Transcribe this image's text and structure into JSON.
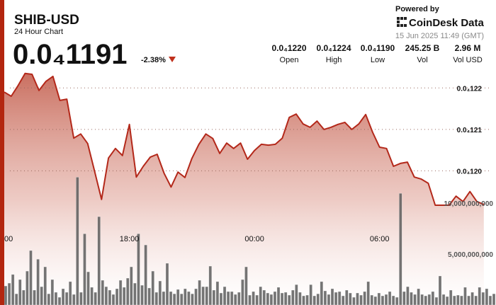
{
  "header": {
    "symbol": "SHIB-USD",
    "subtitle": "24 Hour Chart",
    "price": "0.0₄1191",
    "change": "-2.38%",
    "powered_by": "Powered by",
    "brand": "CoinDesk Data",
    "timestamp": "15 Jun 2025 11:49 (GMT)"
  },
  "stats": [
    {
      "value": "0.0₄1220",
      "label": "Open"
    },
    {
      "value": "0.0₄1224",
      "label": "High"
    },
    {
      "value": "0.0₄1190",
      "label": "Low"
    },
    {
      "value": "245.25 B",
      "label": "Vol"
    },
    {
      "value": "2.96 M",
      "label": "Vol USD"
    }
  ],
  "chart_data": {
    "type": "line",
    "color": "#b3281a",
    "grid": true,
    "x": [
      0,
      20,
      40,
      60,
      80,
      100,
      120,
      140,
      160,
      180,
      200,
      220,
      240,
      260,
      280,
      300,
      320,
      340,
      360,
      380,
      400,
      420,
      440,
      460,
      480,
      500,
      520,
      540,
      560,
      580,
      600,
      620,
      640,
      660,
      680,
      700,
      720,
      740,
      760,
      780,
      800,
      820,
      840,
      860,
      880,
      900,
      920,
      940,
      960,
      980,
      1000,
      1020,
      1040,
      1060,
      1080,
      1100,
      1120,
      1140,
      1160,
      1180,
      1200,
      1220,
      1240,
      1260,
      1280,
      1300,
      1320,
      1340,
      1360,
      1380
    ],
    "values": [
      1.219e-05,
      1.218e-05,
      1.2206e-05,
      1.2235e-05,
      1.2233e-05,
      1.2194e-05,
      1.2216e-05,
      1.2228e-05,
      1.217e-05,
      1.2173e-05,
      1.2079e-05,
      1.2089e-05,
      1.2066e-05,
      1.1999e-05,
      1.1931e-05,
      1.2031e-05,
      1.2054e-05,
      1.2037e-05,
      1.2112e-05,
      1.1985e-05,
      1.2011e-05,
      1.2033e-05,
      1.204e-05,
      1.1994e-05,
      1.1961e-05,
      1.1997e-05,
      1.1984e-05,
      1.203e-05,
      1.2064e-05,
      1.2089e-05,
      1.2078e-05,
      1.2042e-05,
      1.2067e-05,
      1.2054e-05,
      1.2067e-05,
      1.2028e-05,
      1.2049e-05,
      1.2064e-05,
      1.2062e-05,
      1.2064e-05,
      1.2079e-05,
      1.2129e-05,
      1.2137e-05,
      1.2113e-05,
      1.2105e-05,
      1.212e-05,
      1.21e-05,
      1.2105e-05,
      1.2112e-05,
      1.2117e-05,
      1.21e-05,
      1.2113e-05,
      1.2136e-05,
      1.2093e-05,
      1.2057e-05,
      1.2054e-05,
      1.2011e-05,
      1.2018e-05,
      1.2021e-05,
      1.1985e-05,
      1.198e-05,
      1.197e-05,
      1.1917e-05,
      1.1917e-05,
      1.1917e-05,
      1.1939e-05,
      1.1926e-05,
      1.195e-05,
      1.1926e-05,
      1.1919e-05
    ],
    "xlim": [
      0,
      1415
    ],
    "xticks": [
      {
        "value": 0,
        "label": "00"
      },
      {
        "value": 360,
        "label": "18:00"
      },
      {
        "value": 720,
        "label": "00:00"
      },
      {
        "value": 1080,
        "label": "06:00"
      }
    ],
    "ylim": [
      1.19e-05,
      1.225e-05
    ],
    "yticks": [
      {
        "value": 1.2e-05,
        "label": "0.0₄120"
      },
      {
        "value": 1.21e-05,
        "label": "0.0₄121"
      },
      {
        "value": 1.22e-05,
        "label": "0.0₄122"
      }
    ],
    "volume": {
      "type": "bar",
      "color": "#5c5c5c",
      "values": [
        1870000000.0,
        2150000000.0,
        3000000000.0,
        1100000000.0,
        2500000000.0,
        1460000000.0,
        3330000000.0,
        5350000000.0,
        1460000000.0,
        4500000000.0,
        1800000000.0,
        3750000000.0,
        1100000000.0,
        2500000000.0,
        1250000000.0,
        760000000.0,
        1600000000.0,
        1250000000.0,
        2300000000.0,
        1040000000.0,
        12560000000.0,
        1250000000.0,
        7000000000.0,
        3260000000.0,
        1740000000.0,
        1250000000.0,
        8680000000.0,
        2430000000.0,
        1800000000.0,
        1460000000.0,
        1040000000.0,
        1600000000.0,
        2430000000.0,
        1740000000.0,
        2640000000.0,
        3750000000.0,
        2150000000.0,
        7000000000.0,
        1940000000.0,
        5900000000.0,
        1670000000.0,
        3330000000.0,
        1250000000.0,
        2360000000.0,
        1320000000.0,
        4100000000.0,
        1320000000.0,
        1100000000.0,
        1530000000.0,
        1100000000.0,
        1600000000.0,
        1320000000.0,
        1100000000.0,
        1600000000.0,
        2430000000.0,
        1800000000.0,
        1800000000.0,
        3820000000.0,
        1460000000.0,
        2300000000.0,
        1180000000.0,
        1800000000.0,
        1320000000.0,
        1320000000.0,
        1040000000.0,
        1250000000.0,
        2500000000.0,
        3750000000.0,
        970000000.0,
        1320000000.0,
        970000000.0,
        1800000000.0,
        1460000000.0,
        1180000000.0,
        1040000000.0,
        1320000000.0,
        1740000000.0,
        1180000000.0,
        1250000000.0,
        970000000.0,
        1460000000.0,
        2000000000.0,
        1250000000.0,
        900000000.0,
        970000000.0,
        2000000000.0,
        900000000.0,
        1100000000.0,
        2300000000.0,
        1390000000.0,
        1040000000.0,
        1600000000.0,
        1250000000.0,
        1320000000.0,
        900000000.0,
        1460000000.0,
        1180000000.0,
        760000000.0,
        1180000000.0,
        970000000.0,
        1320000000.0,
        2300000000.0,
        970000000.0,
        830000000.0,
        1180000000.0,
        900000000.0,
        1040000000.0,
        1320000000.0,
        900000000.0,
        760000000.0,
        10970000000.0,
        1320000000.0,
        1800000000.0,
        1250000000.0,
        1040000000.0,
        1600000000.0,
        1040000000.0,
        900000000.0,
        1040000000.0,
        1320000000.0,
        760000000.0,
        2850000000.0,
        1040000000.0,
        830000000.0,
        1460000000.0,
        900000000.0,
        970000000.0,
        900000000.0,
        1740000000.0,
        900000000.0,
        1250000000.0,
        900000000.0,
        1740000000.0,
        1250000000.0,
        1600000000.0,
        900000000.0,
        1100000000.0
      ],
      "ylim": [
        0,
        13000000000
      ],
      "yticks": [
        {
          "value": 5000000000,
          "label": "5,000,000,000"
        },
        {
          "value": 10000000000,
          "label": "10,000,000,000"
        }
      ]
    }
  }
}
